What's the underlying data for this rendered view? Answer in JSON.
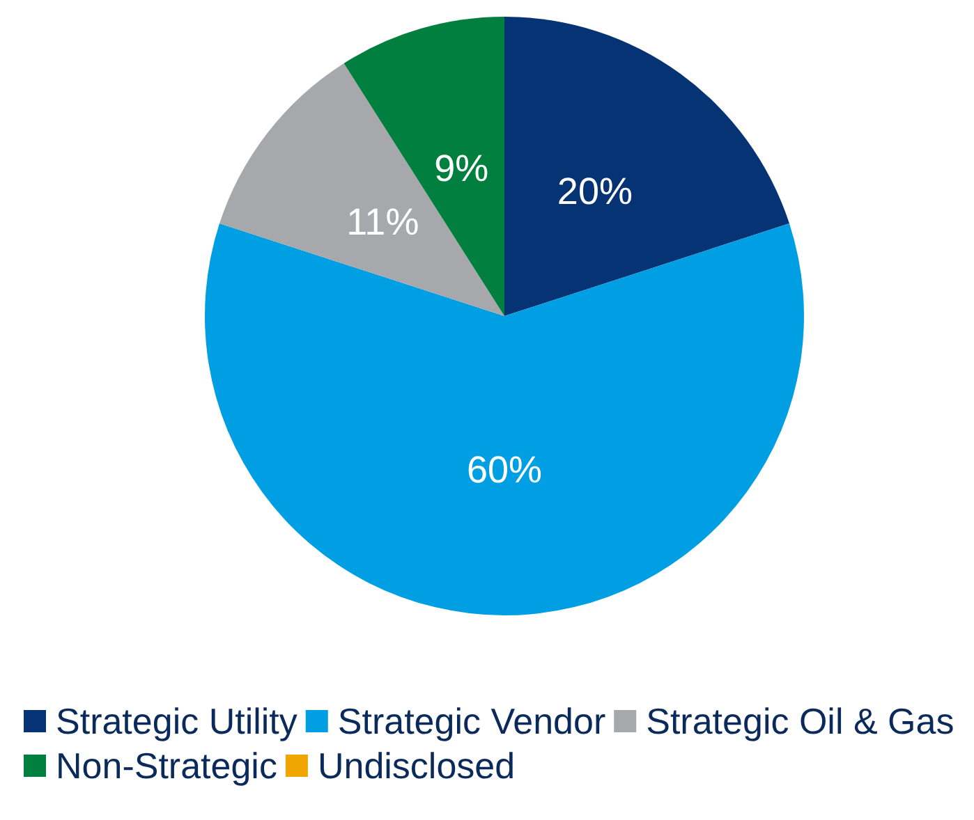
{
  "chart_data": {
    "type": "pie",
    "categories": [
      "Strategic Utility",
      "Strategic Vendor",
      "Strategic Oil & Gas",
      "Non-Strategic",
      "Undisclosed"
    ],
    "values": [
      20,
      60,
      11,
      9,
      0
    ],
    "colors": [
      "#063374",
      "#009fe3",
      "#a6a8ab",
      "#007f3e",
      "#f0a500"
    ],
    "value_labels": [
      "20%",
      "60%",
      "11%",
      "9%",
      null
    ],
    "legend": "bottom"
  }
}
